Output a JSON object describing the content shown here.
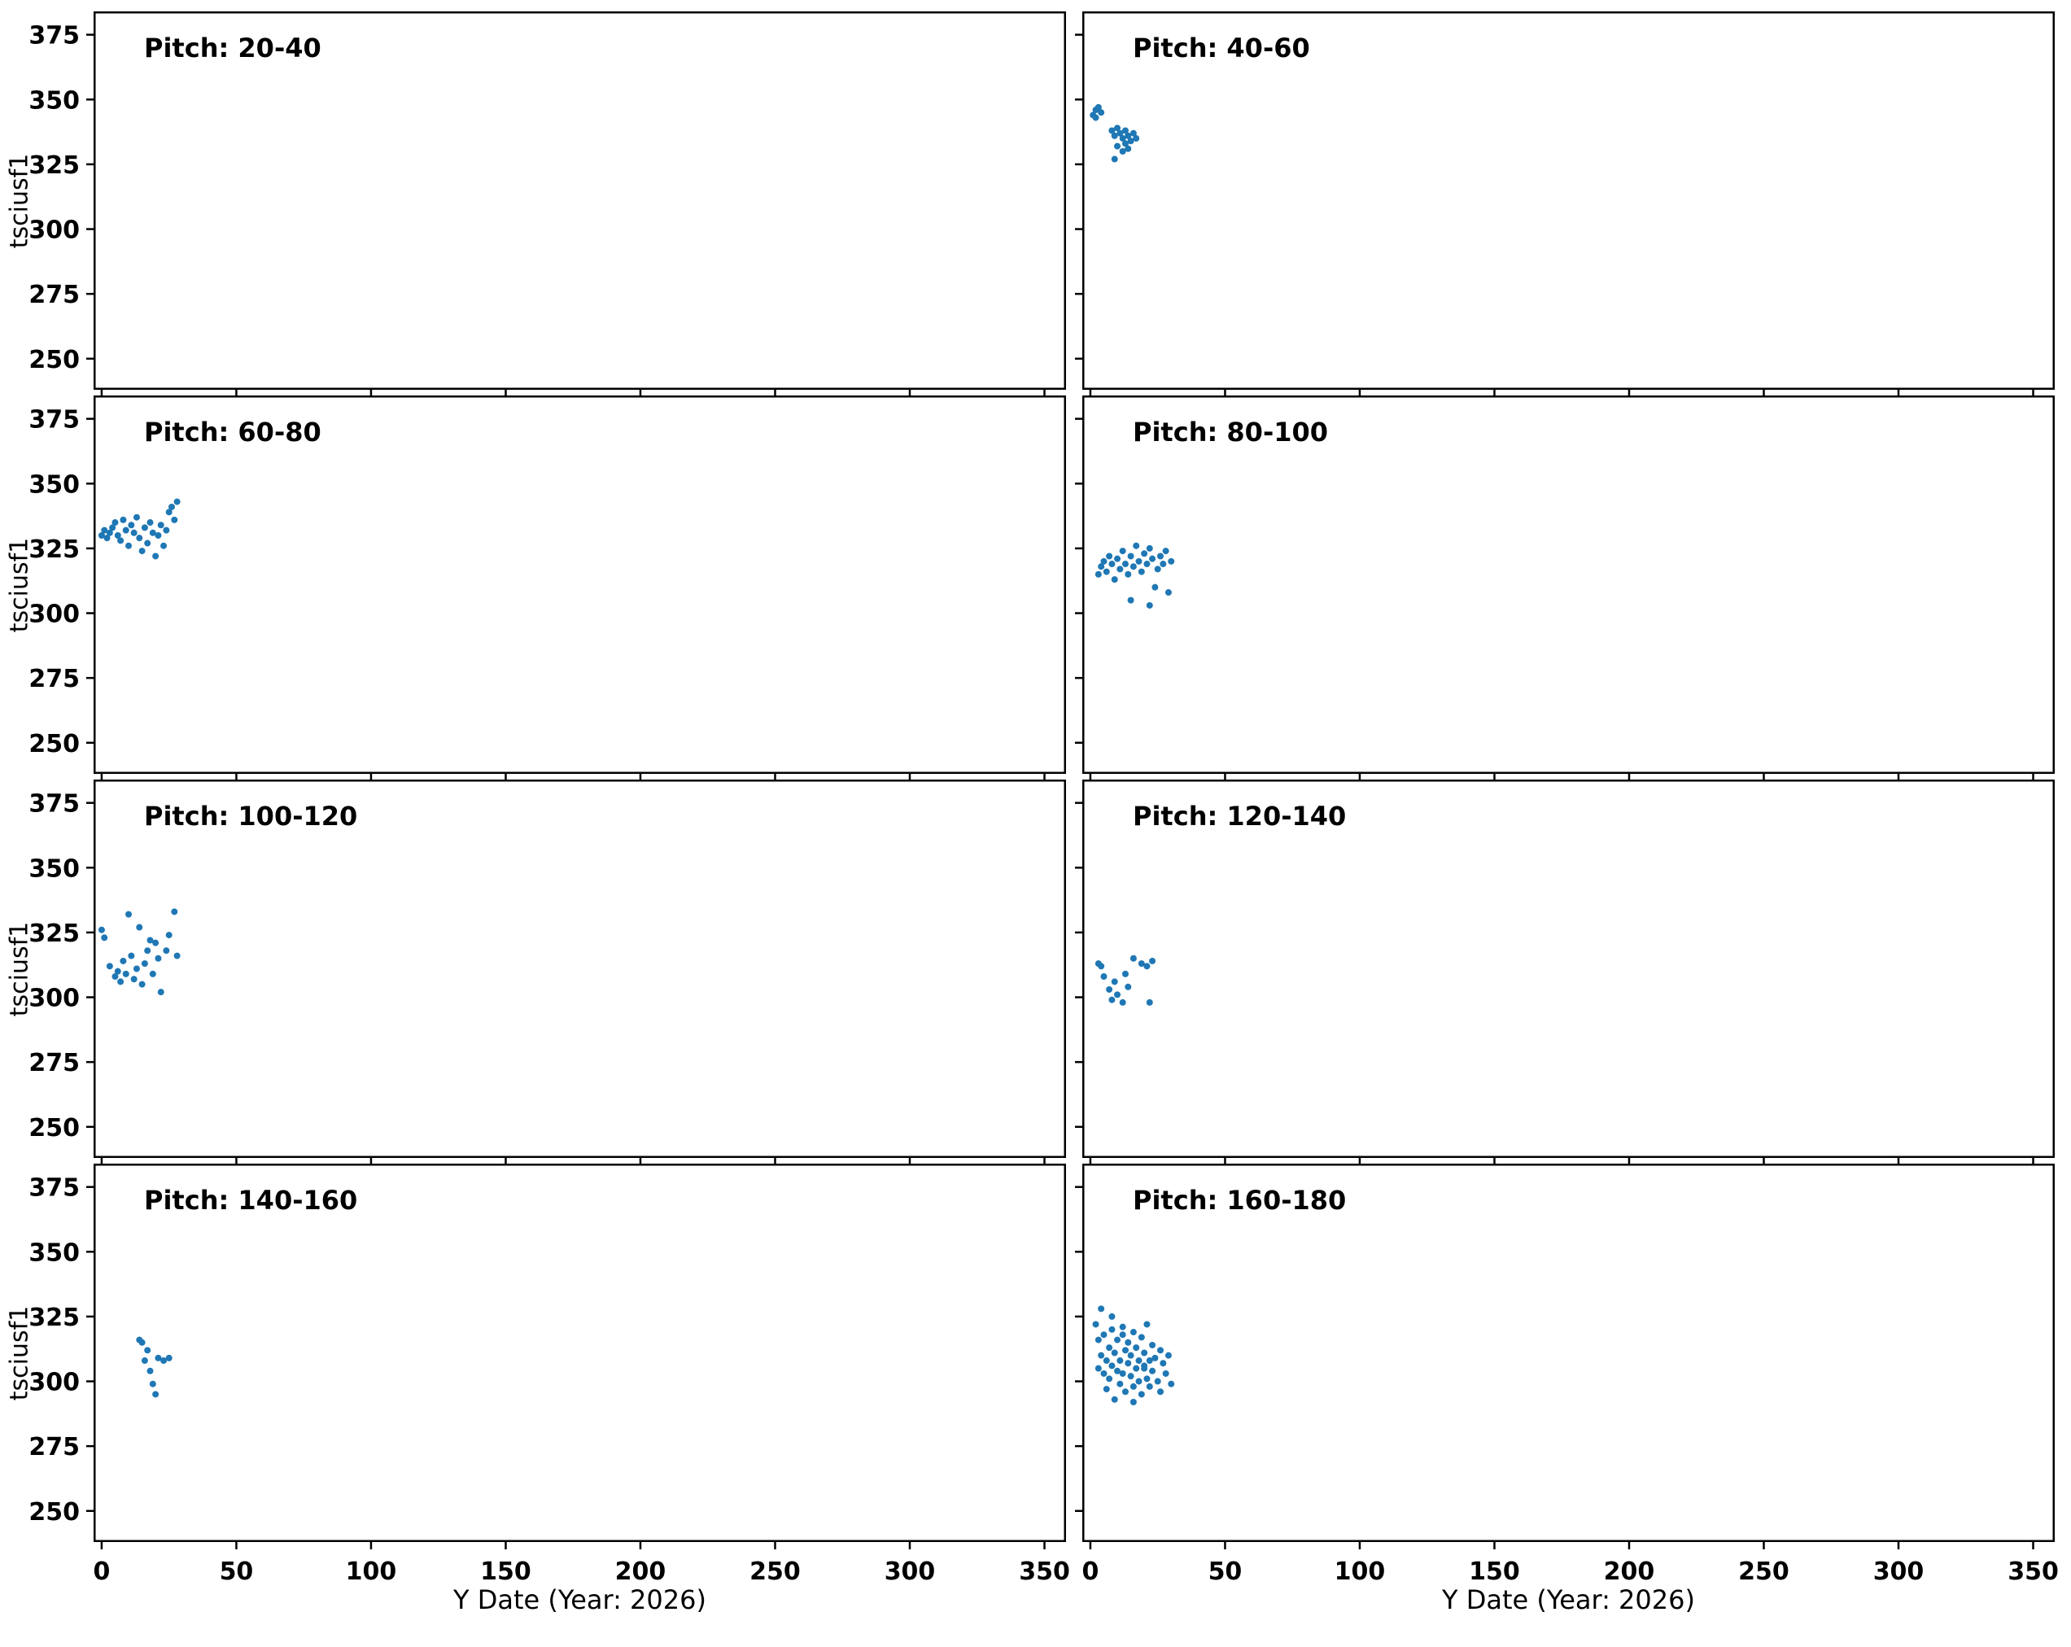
{
  "figure": {
    "ylabel": "tsciusf1",
    "xlabel": "Y Date (Year: 2026)",
    "marker_color": "#1f77b4",
    "x_ticks": [
      0,
      50,
      100,
      150,
      200,
      250,
      300,
      350
    ],
    "y_ticks": [
      250,
      275,
      300,
      325,
      350,
      375
    ],
    "xlim": [
      -3,
      358
    ],
    "ylim": [
      238,
      384
    ],
    "grid": false,
    "legend": "none"
  },
  "chart_data": [
    {
      "type": "scatter",
      "title": "Pitch: 20-40",
      "x": [],
      "y": []
    },
    {
      "type": "scatter",
      "title": "Pitch: 40-60",
      "x": [
        1,
        2,
        2,
        3,
        4,
        8,
        9,
        10,
        11,
        12,
        13,
        14,
        15,
        16,
        10,
        12,
        14,
        17,
        9,
        13
      ],
      "y": [
        344,
        346,
        343,
        347,
        345,
        338,
        336,
        339,
        337,
        335,
        338,
        336,
        334,
        337,
        332,
        330,
        331,
        335,
        327,
        333
      ]
    },
    {
      "type": "scatter",
      "title": "Pitch: 60-80",
      "x": [
        0,
        1,
        2,
        3,
        4,
        5,
        6,
        7,
        8,
        9,
        10,
        11,
        12,
        13,
        14,
        15,
        16,
        17,
        18,
        19,
        20,
        21,
        22,
        23,
        24,
        25,
        26,
        27,
        28
      ],
      "y": [
        330,
        332,
        329,
        331,
        333,
        335,
        330,
        328,
        336,
        332,
        326,
        334,
        331,
        337,
        329,
        324,
        333,
        327,
        335,
        331,
        322,
        330,
        334,
        326,
        332,
        339,
        341,
        336,
        343
      ]
    },
    {
      "type": "scatter",
      "title": "Pitch: 80-100",
      "x": [
        3,
        4,
        5,
        6,
        7,
        8,
        9,
        10,
        11,
        12,
        13,
        14,
        15,
        16,
        17,
        18,
        19,
        20,
        21,
        22,
        23,
        24,
        25,
        26,
        27,
        28,
        29,
        30,
        15,
        22
      ],
      "y": [
        315,
        318,
        320,
        316,
        322,
        319,
        313,
        321,
        317,
        324,
        319,
        315,
        322,
        318,
        326,
        320,
        316,
        323,
        319,
        325,
        321,
        310,
        317,
        322,
        319,
        324,
        308,
        320,
        305,
        303
      ]
    },
    {
      "type": "scatter",
      "title": "Pitch: 100-120",
      "x": [
        0,
        1,
        3,
        5,
        6,
        7,
        8,
        9,
        10,
        11,
        12,
        13,
        14,
        15,
        16,
        17,
        18,
        19,
        20,
        21,
        22,
        24,
        25,
        27,
        28
      ],
      "y": [
        326,
        323,
        312,
        308,
        310,
        306,
        314,
        309,
        332,
        316,
        307,
        311,
        327,
        305,
        313,
        318,
        322,
        309,
        321,
        315,
        302,
        318,
        324,
        333,
        316
      ]
    },
    {
      "type": "scatter",
      "title": "Pitch: 120-140",
      "x": [
        3,
        4,
        5,
        7,
        8,
        9,
        10,
        12,
        13,
        14,
        16,
        19,
        21,
        22,
        23
      ],
      "y": [
        313,
        312,
        308,
        303,
        299,
        306,
        301,
        298,
        309,
        304,
        315,
        313,
        312,
        298,
        314
      ]
    },
    {
      "type": "scatter",
      "title": "Pitch: 140-160",
      "x": [
        14,
        15,
        16,
        17,
        18,
        19,
        20,
        21,
        23,
        25
      ],
      "y": [
        316,
        315,
        308,
        312,
        304,
        299,
        295,
        309,
        308,
        309
      ]
    },
    {
      "type": "scatter",
      "title": "Pitch: 160-180",
      "x": [
        2,
        3,
        3,
        4,
        4,
        5,
        5,
        6,
        6,
        7,
        7,
        8,
        8,
        9,
        9,
        10,
        10,
        11,
        11,
        12,
        12,
        13,
        13,
        14,
        14,
        15,
        15,
        16,
        16,
        17,
        17,
        18,
        18,
        19,
        19,
        20,
        20,
        21,
        21,
        22,
        22,
        23,
        23,
        24,
        25,
        26,
        26,
        27,
        28,
        29,
        30,
        8,
        12,
        16,
        20
      ],
      "y": [
        322,
        316,
        305,
        328,
        310,
        303,
        318,
        308,
        297,
        313,
        301,
        320,
        306,
        293,
        311,
        304,
        316,
        299,
        308,
        321,
        303,
        312,
        296,
        307,
        315,
        302,
        310,
        298,
        319,
        305,
        313,
        300,
        308,
        317,
        295,
        306,
        311,
        301,
        322,
        308,
        298,
        314,
        304,
        309,
        300,
        312,
        296,
        307,
        303,
        310,
        299,
        325,
        318,
        292,
        305
      ]
    }
  ]
}
